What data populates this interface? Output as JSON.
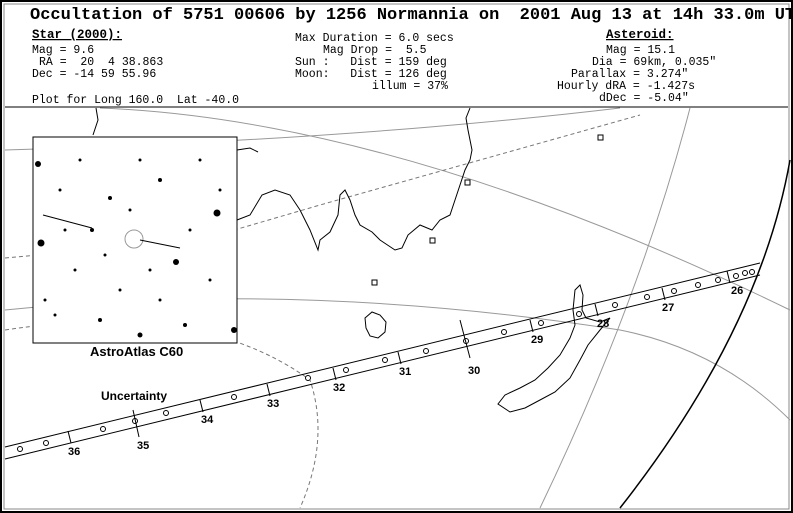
{
  "header": {
    "title": "Occultation of 5751 00606 by 1256 Normannia on  2001 Aug 13 at 14h 33.0m UT",
    "star": {
      "heading": "Star (2000):",
      "mag": "Mag = 9.6",
      "ra": "RA =  20  4 38.863",
      "dec": "Dec = -14 59 55.96"
    },
    "event": {
      "duration": "Max Duration = 6.0 secs",
      "mag_drop": "Mag Drop =  5.5",
      "sun": "Sun :   Dist = 159 deg",
      "moon": "Moon:   Dist = 126 deg",
      "illum": "illum = 37%"
    },
    "asteroid": {
      "heading": "Asteroid:",
      "mag": "Mag = 15.1",
      "dia": "Dia = 69km, 0.035\"",
      "parallax": "Parallax = 3.274\"",
      "hourly_dra": "Hourly dRA = -1.427s",
      "ddec": "dDec = -5.04\""
    },
    "plot_for": "Plot for Long 160.0  Lat -40.0"
  },
  "map": {
    "time_labels": [
      "26",
      "27",
      "28",
      "29",
      "30",
      "31",
      "32",
      "33",
      "34",
      "35",
      "36"
    ],
    "uncertainty": "Uncertainty",
    "inset_caption": "AstroAtlas C60"
  }
}
